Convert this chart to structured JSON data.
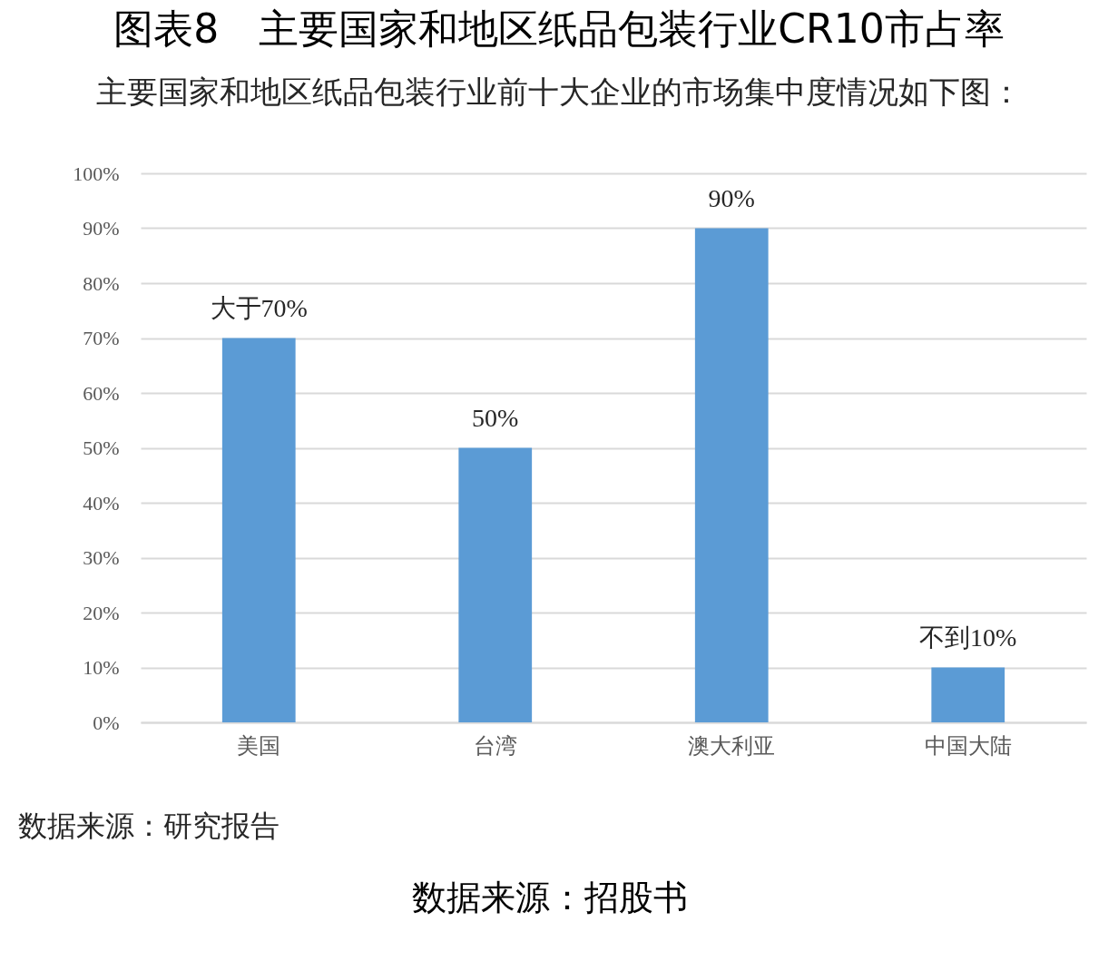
{
  "chart_data": {
    "type": "bar",
    "title": "图表8　主要国家和地区纸品包装行业CR10市占率",
    "subtitle": "主要国家和地区纸品包装行业前十大企业的市场集中度情况如下图：",
    "categories": [
      "美国",
      "台湾",
      "澳大利亚",
      "中国大陆"
    ],
    "values": [
      70,
      50,
      90,
      10
    ],
    "value_labels": [
      "大于70%",
      "50%",
      "90%",
      "不到10%"
    ],
    "color": "#5b9bd5",
    "ylim": [
      0,
      100
    ],
    "yticks": [
      {
        "value": 0,
        "label": "0%"
      },
      {
        "value": 10,
        "label": "10%"
      },
      {
        "value": 20,
        "label": "20%"
      },
      {
        "value": 30,
        "label": "30%"
      },
      {
        "value": 40,
        "label": "40%"
      },
      {
        "value": 50,
        "label": "50%"
      },
      {
        "value": 60,
        "label": "60%"
      },
      {
        "value": 70,
        "label": "70%"
      },
      {
        "value": 80,
        "label": "80%"
      },
      {
        "value": 90,
        "label": "90%"
      },
      {
        "value": 100,
        "label": "100%"
      }
    ],
    "grid": "y",
    "annotations": [
      "数据来源：研究报告",
      "数据来源：招股书"
    ]
  }
}
